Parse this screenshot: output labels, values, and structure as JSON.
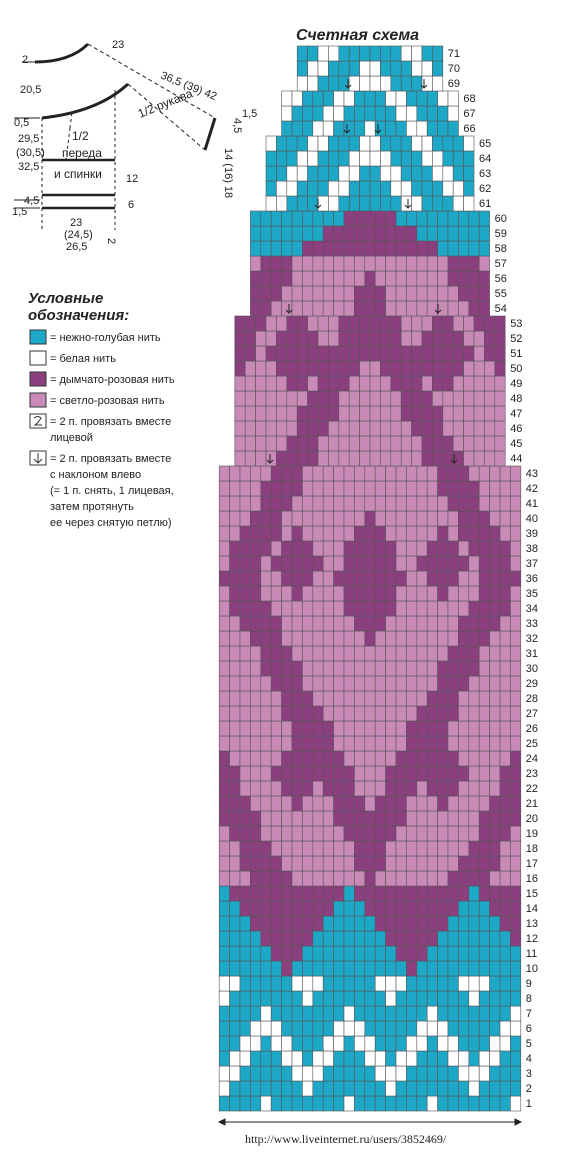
{
  "schematic": {
    "labels": [
      "2",
      "23",
      "20,5",
      "36,5 (39) 42",
      "0,5",
      "1/2 рукава",
      "4,5",
      "1,5",
      "29,5",
      "(30,5)",
      "32,5",
      "1/2",
      "переда",
      "и спинки",
      "12",
      "14 (16) 18",
      "4,5",
      "1,5",
      "6",
      "23",
      "(24,5)",
      "26,5",
      "2"
    ]
  },
  "chart": {
    "title": "Счетная схема",
    "row_numbers": [
      1,
      2,
      3,
      4,
      5,
      6,
      7,
      8,
      9,
      10,
      11,
      12,
      13,
      14,
      15,
      16,
      17,
      18,
      19,
      20,
      21,
      22,
      23,
      24,
      25,
      26,
      27,
      28,
      29,
      30,
      31,
      32,
      33,
      34,
      35,
      36,
      37,
      38,
      39,
      40,
      41,
      42,
      43,
      44,
      45,
      46,
      47,
      48,
      49,
      50,
      51,
      52,
      53,
      54,
      55,
      56,
      57,
      58,
      59,
      60,
      61,
      62,
      63,
      64,
      65,
      66,
      67,
      68,
      69,
      70,
      71
    ]
  },
  "legend": {
    "title": [
      "Условные",
      "обозначения:"
    ],
    "items": [
      [
        "= нежно-голубая нить"
      ],
      [
        "= белая нить"
      ],
      [
        "= дымчато-розовая нить"
      ],
      [
        "= светло-розовая нить"
      ],
      [
        "= 2 п. провязать вместе",
        "лицевой"
      ],
      [
        "= 2 п. провязать вместе",
        "с наклоном влево",
        "(= 1 п. снять, 1 лицевая,",
        "затем протянуть",
        "ее через снятую петлю)"
      ]
    ]
  },
  "footer": "http://www.liveinternet.ru/users/3852469/"
}
